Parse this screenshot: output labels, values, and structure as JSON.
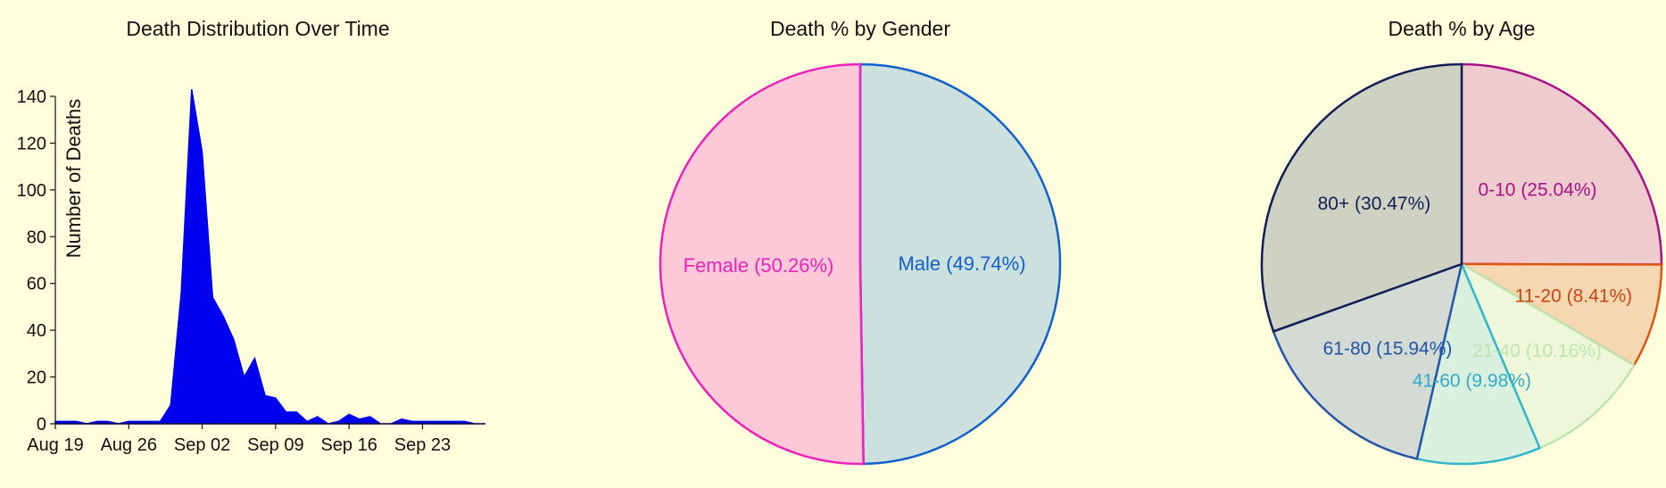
{
  "chart_data": [
    {
      "type": "area",
      "title": "Death Distribution Over Time",
      "xlabel": "",
      "ylabel": "Number of Deaths",
      "ylim": [
        0,
        140
      ],
      "yticks": [
        0,
        20,
        40,
        60,
        80,
        100,
        120,
        140
      ],
      "xticks": [
        "Aug 19",
        "Aug 26",
        "Sep 02",
        "Sep 09",
        "Sep 16",
        "Sep 23"
      ],
      "x": [
        "Aug 19",
        "Aug 20",
        "Aug 21",
        "Aug 22",
        "Aug 23",
        "Aug 24",
        "Aug 25",
        "Aug 26",
        "Aug 27",
        "Aug 28",
        "Aug 29",
        "Aug 30",
        "Aug 31",
        "Sep 01",
        "Sep 02",
        "Sep 03",
        "Sep 04",
        "Sep 05",
        "Sep 06",
        "Sep 07",
        "Sep 08",
        "Sep 09",
        "Sep 10",
        "Sep 11",
        "Sep 12",
        "Sep 13",
        "Sep 14",
        "Sep 15",
        "Sep 16",
        "Sep 17",
        "Sep 18",
        "Sep 19",
        "Sep 20",
        "Sep 21",
        "Sep 22",
        "Sep 23",
        "Sep 24",
        "Sep 25",
        "Sep 26",
        "Sep 27",
        "Sep 28",
        "Sep 29"
      ],
      "values": [
        1,
        1,
        1,
        0,
        1,
        1,
        0,
        1,
        1,
        1,
        1,
        8,
        56,
        143,
        116,
        54,
        46,
        36,
        20,
        28,
        12,
        11,
        5,
        5,
        1,
        3,
        0,
        1,
        4,
        2,
        3,
        0,
        0,
        2,
        1,
        1,
        1,
        1,
        1,
        1,
        0,
        0
      ],
      "color": "#0000ee"
    },
    {
      "type": "pie",
      "title": "Death % by Gender",
      "slices": [
        {
          "label": "Male (49.74%)",
          "value": 49.74,
          "fill": "#cce0dd",
          "stroke": "#1160cc",
          "text": "#1160cc"
        },
        {
          "label": "Female (50.26%)",
          "value": 50.26,
          "fill": "#ffc9d8",
          "stroke": "#ee22bb",
          "text": "#ee22bb"
        }
      ]
    },
    {
      "type": "pie",
      "title": "Death % by Age",
      "slices": [
        {
          "label": "0-10 (25.04%)",
          "value": 25.04,
          "fill": "#eecbcc",
          "stroke": "#aa1188",
          "text": "#aa1188"
        },
        {
          "label": "11-20 (8.41%)",
          "value": 8.41,
          "fill": "#f5d8b2",
          "stroke": "#dd5511",
          "text": "#cc4411"
        },
        {
          "label": "21-40 (10.16%)",
          "value": 10.16,
          "fill": "#eef7d9",
          "stroke": "#bde5b0",
          "text": "#bde5b0"
        },
        {
          "label": "41-60 (9.98%)",
          "value": 9.98,
          "fill": "#d8f0dd",
          "stroke": "#33b5cc",
          "text": "#33aacc"
        },
        {
          "label": "61-80 (15.94%)",
          "value": 15.94,
          "fill": "#d4dbd4",
          "stroke": "#2255aa",
          "text": "#2255aa"
        },
        {
          "label": "80+ (30.47%)",
          "value": 30.47,
          "fill": "#cfd1c3",
          "stroke": "#111f55",
          "text": "#111f55"
        }
      ]
    }
  ]
}
